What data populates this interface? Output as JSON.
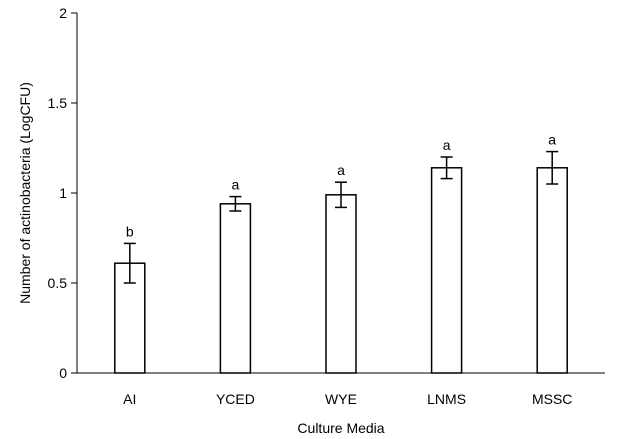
{
  "chart_data": {
    "type": "bar",
    "xlabel": "Culture Media",
    "ylabel": "Number of actinobacteria (LogCFU)",
    "ylim": [
      0,
      2
    ],
    "yticks": [
      0,
      0.5,
      1,
      1.5,
      2
    ],
    "ytick_labels": [
      "0",
      "0.5",
      "1",
      "1.5",
      "2"
    ],
    "grid": false,
    "legend": "none",
    "categories": [
      "AI",
      "YCED",
      "WYE",
      "LNMS",
      "MSSC"
    ],
    "values": [
      0.61,
      0.94,
      0.99,
      1.14,
      1.14
    ],
    "error": [
      0.11,
      0.04,
      0.07,
      0.06,
      0.09
    ],
    "significance": [
      "b",
      "a",
      "a",
      "a",
      "a"
    ],
    "bar_fill": "#ffffff",
    "bar_stroke": "#000000"
  }
}
